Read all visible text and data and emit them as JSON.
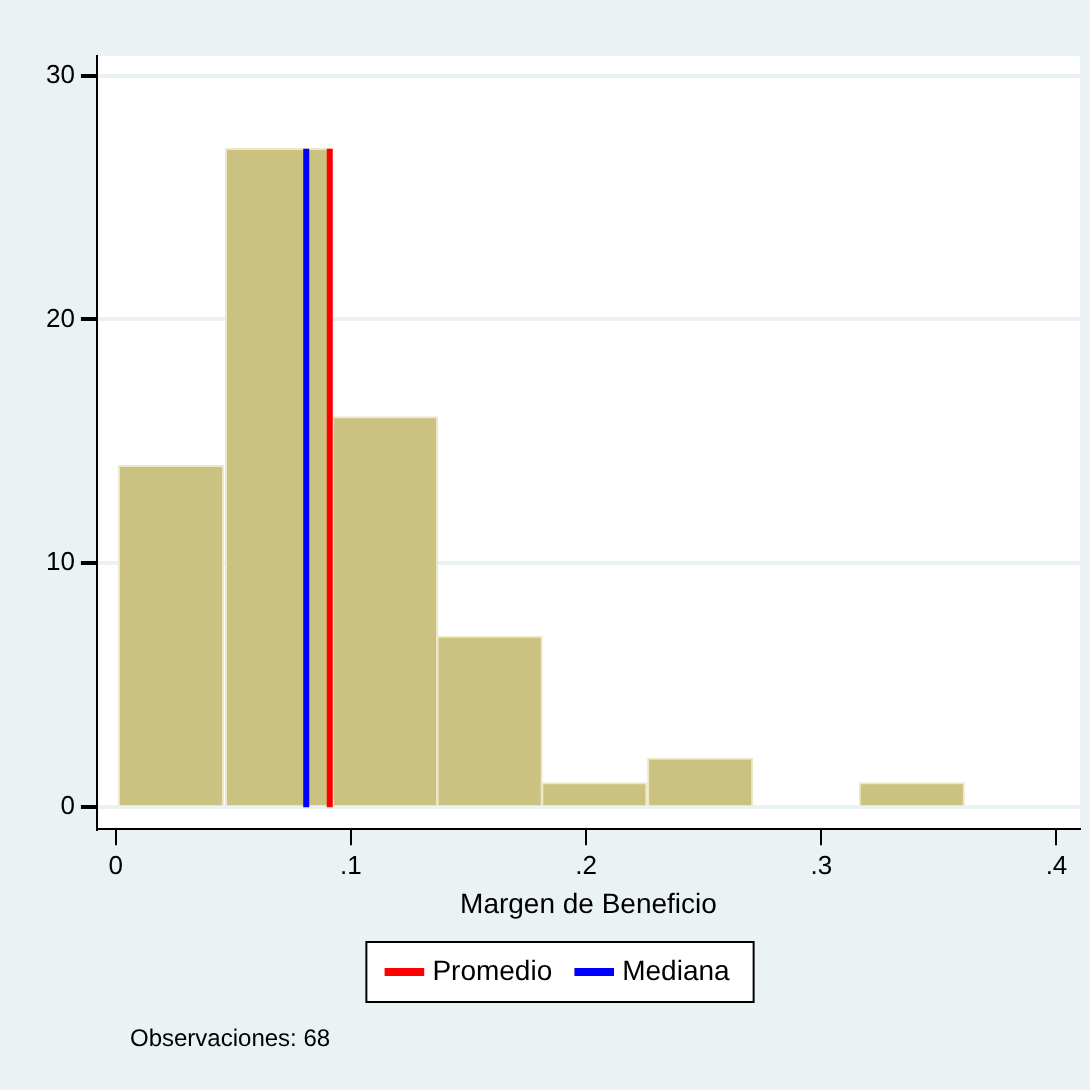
{
  "chart_data": {
    "type": "histogram",
    "xlabel": "Margen de Beneficio",
    "bins": [
      0.001,
      0.046,
      0.092,
      0.137,
      0.181,
      0.226,
      0.271,
      0.316,
      0.361
    ],
    "values": [
      14,
      27,
      16,
      7,
      1,
      2,
      0,
      1
    ],
    "color": "#cbc281",
    "xlim": [
      -0.008,
      0.41
    ],
    "ylim": [
      -0.9,
      30.8
    ],
    "xticks": [
      0,
      {
        "value": 0.1,
        "label": ".1"
      },
      {
        "value": 0.2,
        "label": ".2"
      },
      {
        "value": 0.3,
        "label": ".3"
      },
      {
        "value": 0.4,
        "label": ".4"
      }
    ],
    "yticks": [
      0,
      10,
      20,
      30
    ],
    "grid": "y",
    "legend": "bottom",
    "ref_lines": [
      {
        "axis": "x",
        "value": 0.091,
        "label": "Promedio",
        "color": "#ff0000"
      },
      {
        "axis": "x",
        "value": 0.081,
        "label": "Mediana",
        "color": "#0000ff"
      }
    ],
    "annotations": [
      "Observaciones: 68"
    ]
  }
}
